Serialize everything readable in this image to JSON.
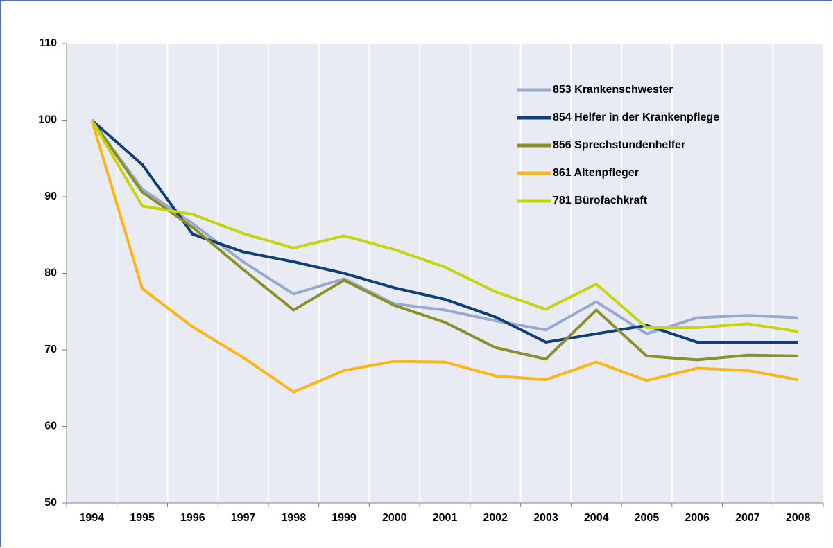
{
  "chart_data": {
    "type": "line",
    "categories": [
      "1994",
      "1995",
      "1996",
      "1997",
      "1998",
      "1999",
      "2000",
      "2001",
      "2002",
      "2003",
      "2004",
      "2005",
      "2006",
      "2007",
      "2008"
    ],
    "ylim": [
      50,
      110
    ],
    "yticks": [
      50,
      60,
      70,
      80,
      90,
      100,
      110
    ],
    "grid": "x",
    "legend": "top-right",
    "series": [
      {
        "name": "853 Krankenschwester",
        "color": "#98a9cf",
        "values": [
          100,
          91,
          86.5,
          81.5,
          77.3,
          79.3,
          76,
          75.2,
          73.8,
          72.6,
          76.3,
          72.1,
          74.2,
          74.5,
          74.2
        ]
      },
      {
        "name": "854 Helfer in der Krankenpflege",
        "color": "#0f3e78",
        "values": [
          100,
          94.2,
          85.1,
          82.8,
          81.5,
          80,
          78.1,
          76.6,
          74.3,
          71,
          72.1,
          73.2,
          71,
          71,
          71
        ]
      },
      {
        "name": "856 Sprechstundenhelfer",
        "color": "#8c9028",
        "values": [
          100,
          90.6,
          86,
          80.5,
          75.2,
          79.1,
          75.8,
          73.6,
          70.3,
          68.8,
          75.2,
          69.2,
          68.7,
          69.3,
          69.2
        ]
      },
      {
        "name": "861 Altenpfleger",
        "color": "#fdb515",
        "values": [
          100,
          78,
          73,
          69,
          64.5,
          67.3,
          68.5,
          68.4,
          66.6,
          66.1,
          68.4,
          66,
          67.6,
          67.3,
          66.1
        ]
      },
      {
        "name": "781 Bürofachkraft",
        "color": "#c8d30f",
        "values": [
          100,
          88.8,
          87.7,
          85.2,
          83.3,
          84.9,
          83.1,
          80.8,
          77.6,
          75.3,
          78.6,
          72.9,
          72.9,
          73.4,
          72.4
        ]
      }
    ]
  }
}
